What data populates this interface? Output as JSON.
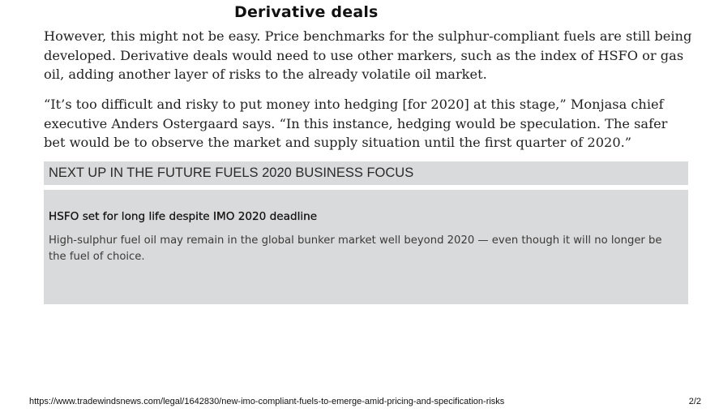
{
  "section": {
    "heading": "Derivative deals"
  },
  "article": {
    "paragraphs": [
      "However, this might not be easy. Price benchmarks for the sulphur-compliant fuels are still being developed. Derivative deals would need to use other markers, such as the index of HSFO or gas oil, adding another layer of risks to the already volatile oil market.",
      "“It’s too difficult and risky to put money into hedging [for 2020] at this stage,” Monjasa chief executive Anders Ostergaard says. “In this instance, hedging would be speculation. The safer bet would be to observe the market and supply situation until the first quarter of 2020.”"
    ]
  },
  "next_up": {
    "banner": "NEXT UP IN THE FUTURE FUELS 2020 BUSINESS FOCUS",
    "card": {
      "title": "HSFO set for long life despite IMO 2020 deadline",
      "summary": "High-sulphur fuel oil may remain in the global bunker market well beyond 2020 — even though it will no longer be the fuel of choice."
    }
  },
  "footer": {
    "url": "https://www.tradewindsnews.com/legal/1642830/new-imo-compliant-fuels-to-emerge-amid-pricing-and-specification-risks",
    "page": "2/2"
  }
}
